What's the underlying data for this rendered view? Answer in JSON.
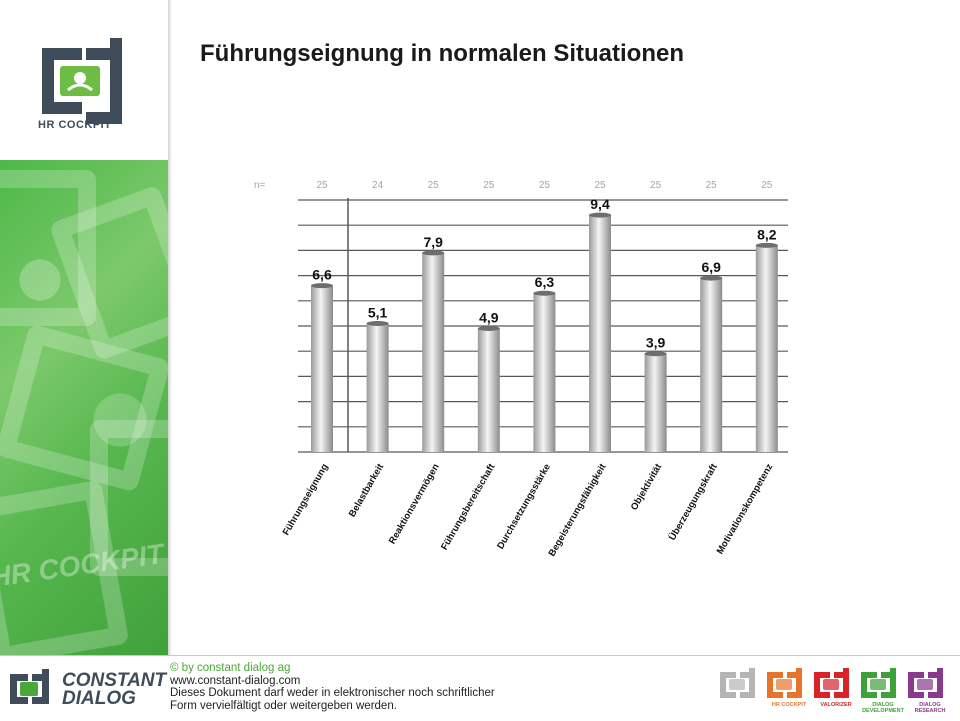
{
  "page": {
    "title": "Führungseignung in normalen Situationen"
  },
  "sidebar": {
    "logo_text": "HR COCKPIT",
    "watermark_text": "HR COCKPIT"
  },
  "chart_data": {
    "type": "bar",
    "title": "",
    "xlabel": "",
    "ylabel": "",
    "ylim": [
      0,
      10
    ],
    "grid": true,
    "n_label": "n=",
    "n_values": [
      "25",
      "24",
      "25",
      "25",
      "25",
      "25",
      "25",
      "25",
      "25"
    ],
    "categories": [
      "Führungseignung",
      "Belastbarkeit",
      "Reaktionsvermögen",
      "Führungsbereitschaft",
      "Durchsetzungsstärke",
      "Begeisterungsfähigkeit",
      "Objektivität",
      "Überzeugungskraft",
      "Motivationskompetenz"
    ],
    "values": [
      6.6,
      5.1,
      7.9,
      4.9,
      6.3,
      9.4,
      3.9,
      6.9,
      8.2
    ],
    "value_labels": [
      "6,6",
      "5,1",
      "7,9",
      "4,9",
      "6,3",
      "9,4",
      "3,9",
      "6,9",
      "8,2"
    ],
    "colors": {
      "bar_light": "#f2f2f2",
      "bar_dark": "#8c8c8c",
      "grid": "#595959",
      "n_text": "#a6a6a6"
    }
  },
  "footer": {
    "brand_line1": "CONSTANT",
    "brand_line2": "DIALOG",
    "copyright": "© by constant dialog ag",
    "url": "www.constant-dialog.com",
    "notice_line1": "Dieses Dokument darf weder in elektronischer noch schriftlicher",
    "notice_line2": "Form vervielfältigt oder weitergeben werden.",
    "products": [
      {
        "label": "",
        "color": "#b5b5b5"
      },
      {
        "label": "HR COCKPIT",
        "color": "#e8732a"
      },
      {
        "label": "VALORIZER",
        "color": "#d8232a"
      },
      {
        "label": "DIALOG DEVELOPMENT",
        "color": "#3fa13a"
      },
      {
        "label": "DIALOG RESEARCH",
        "color": "#8a3a8c"
      }
    ],
    "colors": {
      "brand": "#3f4c5a",
      "green": "#4aa83a"
    }
  }
}
